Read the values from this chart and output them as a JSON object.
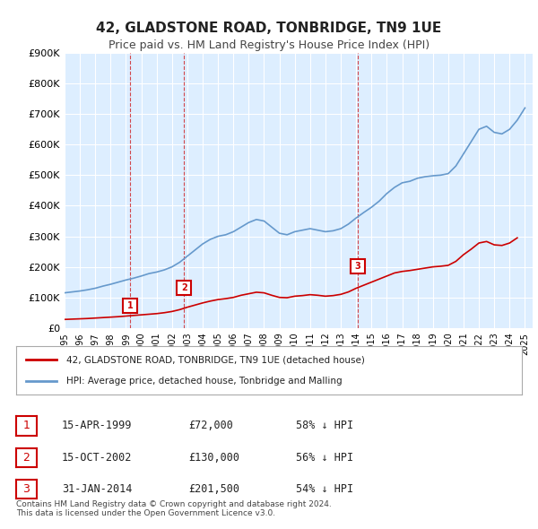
{
  "title": "42, GLADSTONE ROAD, TONBRIDGE, TN9 1UE",
  "subtitle": "Price paid vs. HM Land Registry's House Price Index (HPI)",
  "background_color": "#ffffff",
  "plot_bg_color": "#ddeeff",
  "grid_color": "#ffffff",
  "ylim": [
    0,
    900000
  ],
  "yticks": [
    0,
    100000,
    200000,
    300000,
    400000,
    500000,
    600000,
    700000,
    800000,
    900000
  ],
  "ytick_labels": [
    "£0",
    "£100K",
    "£200K",
    "£300K",
    "£400K",
    "£500K",
    "£600K",
    "£700K",
    "£800K",
    "£900K"
  ],
  "sales": [
    {
      "date_num": 1999.29,
      "price": 72000,
      "label": "1"
    },
    {
      "date_num": 2002.79,
      "price": 130000,
      "label": "2"
    },
    {
      "date_num": 2014.08,
      "price": 201500,
      "label": "3"
    }
  ],
  "sale_dashed_color": "#cc0000",
  "hpi_color": "#6699cc",
  "sale_line_color": "#cc0000",
  "marker_box_color": "#cc0000",
  "legend_entries": [
    "42, GLADSTONE ROAD, TONBRIDGE, TN9 1UE (detached house)",
    "HPI: Average price, detached house, Tonbridge and Malling"
  ],
  "table_rows": [
    {
      "num": "1",
      "date": "15-APR-1999",
      "price": "£72,000",
      "hpi": "58% ↓ HPI"
    },
    {
      "num": "2",
      "date": "15-OCT-2002",
      "price": "£130,000",
      "hpi": "56% ↓ HPI"
    },
    {
      "num": "3",
      "date": "31-JAN-2014",
      "price": "£201,500",
      "hpi": "54% ↓ HPI"
    }
  ],
  "footer": "Contains HM Land Registry data © Crown copyright and database right 2024.\nThis data is licensed under the Open Government Licence v3.0.",
  "xmin": 1995.0,
  "xmax": 2025.5,
  "xticks": [
    1995,
    1996,
    1997,
    1998,
    1999,
    2000,
    2001,
    2002,
    2003,
    2004,
    2005,
    2006,
    2007,
    2008,
    2009,
    2010,
    2011,
    2012,
    2013,
    2014,
    2015,
    2016,
    2017,
    2018,
    2019,
    2020,
    2021,
    2022,
    2023,
    2024,
    2025
  ]
}
